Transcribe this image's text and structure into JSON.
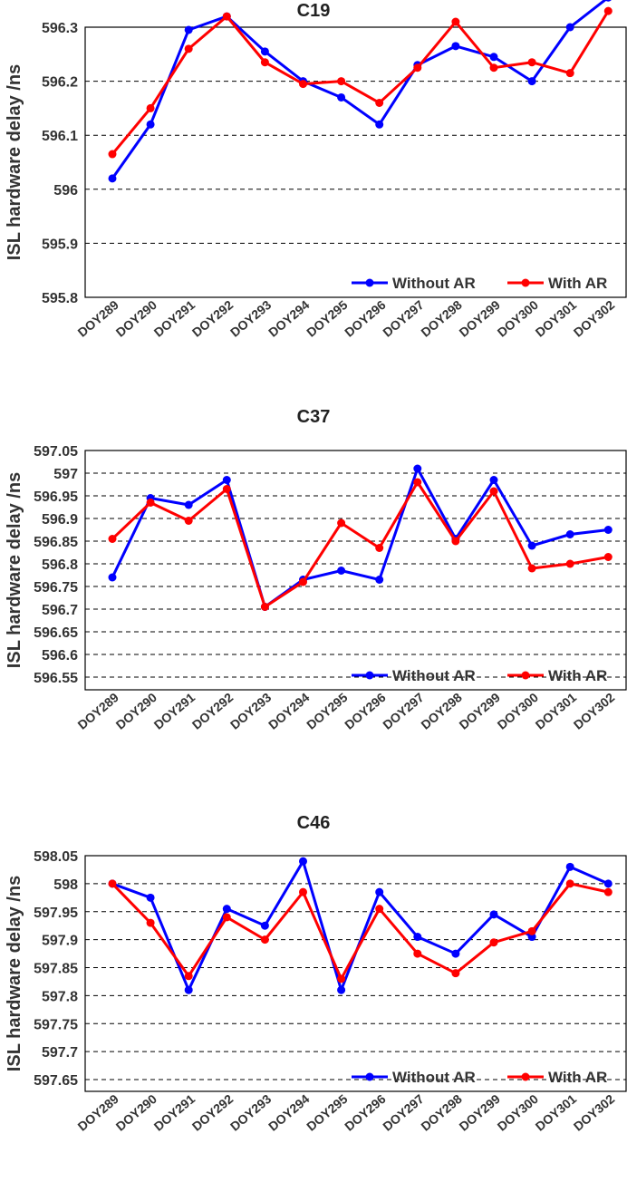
{
  "chart_data": [
    {
      "type": "line",
      "title": "C19",
      "ylabel": "ISL hardware delay /ns",
      "xlabel": "",
      "categories": [
        "DOY289",
        "DOY290",
        "DOY291",
        "DOY292",
        "DOY293",
        "DOY294",
        "DOY295",
        "DOY296",
        "DOY297",
        "DOY298",
        "DOY299",
        "DOY300",
        "DOY301",
        "DOY302"
      ],
      "ylim": [
        595.8,
        596.3
      ],
      "yticks": [
        "595.8",
        "595.9",
        "596",
        "596.1",
        "596.2",
        "596.3"
      ],
      "grid": "horizontal-dashed",
      "legend_position": "bottom-right",
      "series": [
        {
          "name": "Without AR",
          "color": "#0000ff",
          "values": [
            596.02,
            596.12,
            596.295,
            596.32,
            596.255,
            596.2,
            596.17,
            596.12,
            596.23,
            596.265,
            596.245,
            596.2,
            596.3,
            596.355
          ]
        },
        {
          "name": "With AR",
          "color": "#ff0000",
          "values": [
            596.065,
            596.15,
            596.26,
            596.32,
            596.235,
            596.195,
            596.2,
            596.16,
            596.225,
            596.31,
            596.225,
            596.235,
            596.215,
            596.33
          ]
        }
      ]
    },
    {
      "type": "line",
      "title": "C37",
      "ylabel": "ISL hardware delay /ns",
      "xlabel": "",
      "categories": [
        "DOY289",
        "DOY290",
        "DOY291",
        "DOY292",
        "DOY293",
        "DOY294",
        "DOY295",
        "DOY296",
        "DOY297",
        "DOY298",
        "DOY299",
        "DOY300",
        "DOY301",
        "DOY302"
      ],
      "ylim": [
        596.55,
        597.05
      ],
      "yticks": [
        "596.55",
        "596.6",
        "596.65",
        "596.7",
        "596.75",
        "596.8",
        "596.85",
        "596.9",
        "596.95",
        "597",
        "597.05"
      ],
      "grid": "horizontal-dashed",
      "legend_position": "bottom-right",
      "series": [
        {
          "name": "Without AR",
          "color": "#0000ff",
          "values": [
            596.77,
            596.945,
            596.93,
            596.985,
            596.705,
            596.765,
            596.785,
            596.765,
            597.01,
            596.855,
            596.985,
            596.84,
            596.865,
            596.875
          ]
        },
        {
          "name": "With AR",
          "color": "#ff0000",
          "values": [
            596.855,
            596.935,
            596.895,
            596.965,
            596.705,
            596.76,
            596.89,
            596.835,
            596.98,
            596.85,
            596.96,
            596.79,
            596.8,
            596.815
          ]
        }
      ]
    },
    {
      "type": "line",
      "title": "C46",
      "ylabel": "ISL hardware delay /ns",
      "xlabel": "",
      "categories": [
        "DOY289",
        "DOY290",
        "DOY291",
        "DOY292",
        "DOY293",
        "DOY294",
        "DOY295",
        "DOY296",
        "DOY297",
        "DOY298",
        "DOY299",
        "DOY300",
        "DOY301",
        "DOY302"
      ],
      "ylim": [
        597.65,
        598.05
      ],
      "yticks": [
        "597.65",
        "597.7",
        "597.75",
        "597.8",
        "597.85",
        "597.9",
        "597.95",
        "598",
        "598.05"
      ],
      "grid": "horizontal-dashed",
      "legend_position": "bottom-right",
      "series": [
        {
          "name": "Without AR",
          "color": "#0000ff",
          "values": [
            598.0,
            597.975,
            597.81,
            597.955,
            597.925,
            598.04,
            597.81,
            597.985,
            597.905,
            597.875,
            597.945,
            597.905,
            598.03,
            598.0
          ]
        },
        {
          "name": "With AR",
          "color": "#ff0000",
          "values": [
            598.0,
            597.93,
            597.835,
            597.94,
            597.9,
            597.985,
            597.83,
            597.955,
            597.875,
            597.84,
            597.895,
            597.915,
            598.0,
            597.985
          ]
        }
      ]
    }
  ]
}
